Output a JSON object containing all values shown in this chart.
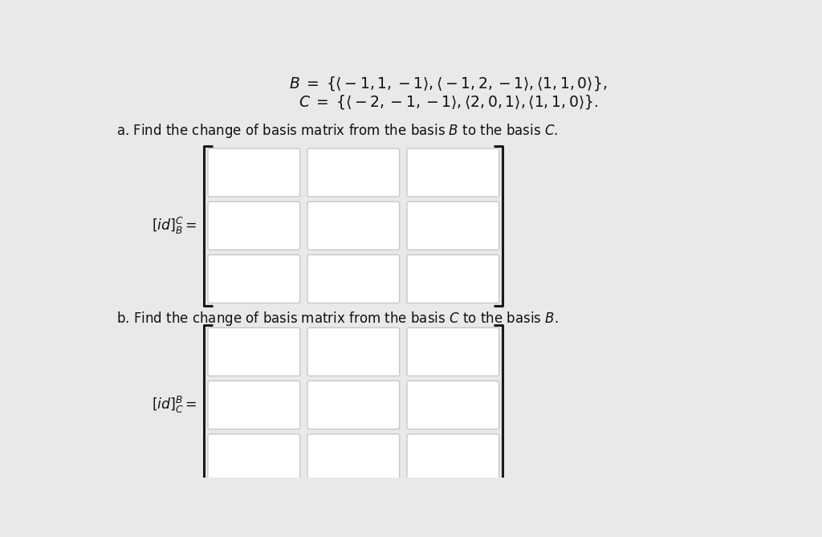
{
  "bg_color": "#e9e9e9",
  "box_fill": "#ffffff",
  "box_edge": "#c8c8c8",
  "bracket_color": "#1a1a1a",
  "text_color": "#111111",
  "line1_B": "$B \\;=\\; \\{\\langle -1, 1, -1\\rangle, \\langle -1, 2, -1\\rangle, \\langle 1, 1, 0\\rangle\\},$",
  "line2_C": "$C \\;=\\; \\{\\langle -2, -1, -1\\rangle, \\langle 2, 0, 1\\rangle, \\langle 1, 1, 0\\rangle\\}.$",
  "label_a": "a. Find the change of basis matrix from the basis $\\mathit{B}$ to the basis $\\mathit{C}$.",
  "label_b": "b. Find the change of basis matrix from the basis $\\mathit{C}$ to the basis $\\mathit{B}$.",
  "matrix_a_label": "$[id]_B^C =$",
  "matrix_b_label": "$[id]_C^B =$",
  "fig_w": 10.24,
  "fig_h": 6.69,
  "xlim": [
    0,
    10.24
  ],
  "ylim": [
    0,
    6.69
  ]
}
